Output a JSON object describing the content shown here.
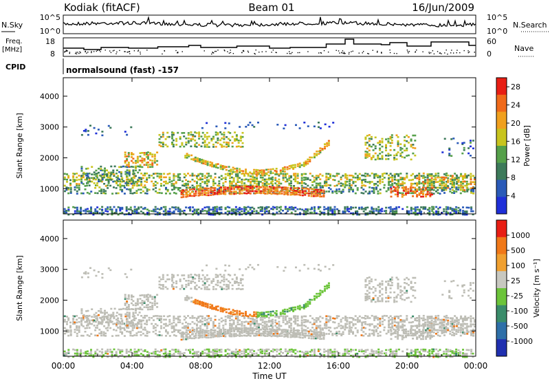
{
  "header": {
    "station": "Kodiak (fitACF)",
    "beam": "Beam 01",
    "date": "16/Jun/2009"
  },
  "summary": {
    "nsky_label": "N.Sky",
    "nsky_ticks": [
      "10^5",
      "10^0"
    ],
    "nsearch_label": "N.Search",
    "nsearch_ticks": [
      "10^5",
      "10^0"
    ],
    "freq_label": "Freq.",
    "freq_unit": "[MHz]",
    "freq_ticks": [
      "18",
      "8"
    ],
    "nave_label": "Nave",
    "nave_ticks": [
      "60",
      "0"
    ],
    "cpid_label": "CPID",
    "cpid_value": "normalsound (fast) -157"
  },
  "chart_data": [
    {
      "type": "heatmap",
      "name": "power",
      "xlabel": "Time UT",
      "ylabel": "Slant Range [km]",
      "xlim_hours": [
        0,
        24
      ],
      "ylim": [
        180,
        4600
      ],
      "xticks": [
        "00:00",
        "04:00",
        "08:00",
        "12:00",
        "16:00",
        "20:00",
        "00:00"
      ],
      "yticks": [
        1000,
        2000,
        3000,
        4000
      ],
      "colorbar": {
        "label": "Power [dB]",
        "ticks": [
          4,
          8,
          12,
          16,
          20,
          24,
          28
        ],
        "range": [
          0,
          30
        ],
        "colors": [
          "#1f2fd8",
          "#2a5ab8",
          "#3d7a5a",
          "#55a04a",
          "#c8c41e",
          "#f0a01e",
          "#f06a1a",
          "#e81e14"
        ]
      }
    },
    {
      "type": "heatmap",
      "name": "velocity",
      "xlabel": "Time UT",
      "ylabel": "Slant Range [km]",
      "xlim_hours": [
        0,
        24
      ],
      "ylim": [
        180,
        4600
      ],
      "xticks": [
        "00:00",
        "04:00",
        "08:00",
        "12:00",
        "16:00",
        "20:00",
        "00:00"
      ],
      "yticks": [
        1000,
        2000,
        3000,
        4000
      ],
      "colorbar": {
        "label": "Velocity [m s⁻¹]",
        "ticks": [
          "1000",
          "500",
          "100",
          "25",
          "-25",
          "-100",
          "-500",
          "-1000"
        ],
        "colors": [
          "#2030b0",
          "#2e6fa8",
          "#3a8c6a",
          "#6cc43a",
          "#c8c8c0",
          "#f0a030",
          "#f07818",
          "#e81e14"
        ]
      }
    }
  ],
  "colors": {
    "ground_scatter": "#bdbdb5",
    "frame": "#000000"
  }
}
